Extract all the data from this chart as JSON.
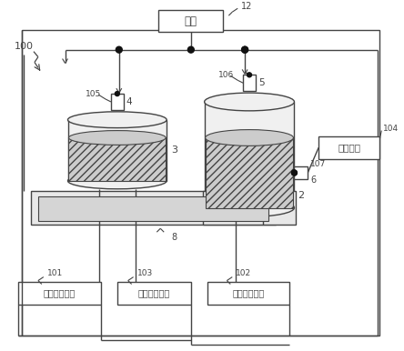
{
  "bg_color": "#ffffff",
  "line_color": "#444444",
  "labels": {
    "title_box": "液体",
    "label_12": "12",
    "label_100": "100",
    "label_3": "3",
    "label_4": "4",
    "label_5": "5",
    "label_2": "2",
    "label_6": "6",
    "label_8": "8",
    "label_105": "105",
    "label_106": "106",
    "label_107": "107",
    "label_101": "101",
    "label_102": "102",
    "label_103": "103",
    "label_104": "104",
    "box_101": "第一检测部分",
    "box_102": "第二检测部分",
    "box_103": "第三检测部分",
    "box_104": "控制部分"
  },
  "figsize": [
    4.44,
    3.86
  ],
  "dpi": 100
}
